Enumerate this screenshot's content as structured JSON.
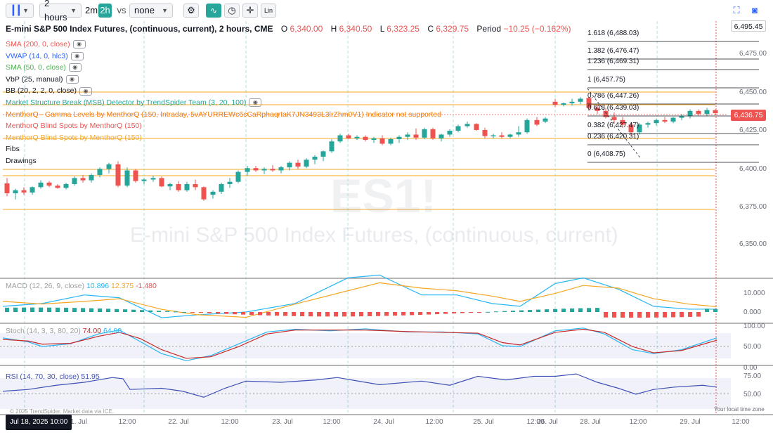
{
  "toolbar": {
    "interval": "2 hours",
    "interval_quick": [
      "2m",
      "2h"
    ],
    "vs_label": "vs",
    "compare_value": "none",
    "indicator_label": "Lin"
  },
  "header": {
    "title": "E-mini S&P 500 Index Futures, (continuous, current), 2 hours, CME",
    "o_label": "O",
    "o_value": "6,340.00",
    "h_label": "H",
    "h_value": "6,340.50",
    "l_label": "L",
    "l_value": "6,323.25",
    "c_label": "C",
    "c_value": "6,329.75",
    "period_label": "Period",
    "period_value": "−10.25 (−0.162%)"
  },
  "legend_items": [
    {
      "text": "SMA (200, 0, close)",
      "color": "#ef5350",
      "eye": true
    },
    {
      "text": "VWAP (14, 0, hlc3)",
      "color": "#2962ff",
      "eye": true
    },
    {
      "text": "SMA (50, 0, close)",
      "color": "#4caf50",
      "eye": true
    },
    {
      "text": "VbP (25, manual)",
      "color": "#131722",
      "eye": true
    },
    {
      "text": "BB (20, 2, 2, 0, close)",
      "color": "#131722",
      "eye": true
    },
    {
      "text": "Market Structure Break (MSB) Detector by TrendSpider Team (3, 20, 100)",
      "color": "#26a69a",
      "eye": true
    },
    {
      "text": "MenthorQ - Gamma Levels by MenthorQ (150, Intraday, 5vAYURREWc6cCaRphaqrtaK7JN3493L3lrZhm0V1)   Indicator not supported",
      "color": "#f57c00",
      "eye": false
    },
    {
      "text": "MenthorQ Blind Spots by MenthorQ (150)",
      "color": "#ef5350",
      "eye": false
    },
    {
      "text": "MenthorQ Blind Spots by MenthorQ (150)",
      "color": "#f5a623",
      "eye": false
    },
    {
      "text": "Fibs",
      "color": "#131722",
      "eye": false
    },
    {
      "text": "Drawings",
      "color": "#131722",
      "eye": false
    }
  ],
  "watermark": {
    "symbol": "ES1!",
    "name": "E-mini S&P 500 Index Futures, (continuous, current)"
  },
  "price_axis": [
    "6,475.00",
    "6,450.00",
    "6,425.00",
    "6,400.00",
    "6,375.00",
    "6,350.00"
  ],
  "price_tags": {
    "top": "6,495.45",
    "current": "6,436.75"
  },
  "fib_levels": [
    {
      "label": "1.618 (6,488.03)"
    },
    {
      "label": "1.382 (6,476.47)"
    },
    {
      "label": "1.236 (6,469.31)"
    },
    {
      "label": "1 (6,457.75)"
    },
    {
      "label": "0.786 (6,447.26)"
    },
    {
      "label": "0.618 (6,439.03)"
    },
    {
      "label": "0.382 (6,427.47)"
    },
    {
      "label": "0.236 (6,420.31)"
    },
    {
      "label": "0 (6,408.75)"
    }
  ],
  "macd": {
    "label": "MACD (12, 26, 9, close)",
    "v1": "10.896",
    "v2": "12.375",
    "v3": "-1.480",
    "axis": [
      "10.000",
      "0.000"
    ]
  },
  "stoch": {
    "label": "Stoch (14, 3, 3, 80, 20)",
    "v1": "74.00",
    "v2": "64.98",
    "axis": [
      "100.00",
      "50.00",
      "0.00"
    ]
  },
  "rsi": {
    "label": "RSI (14, 70, 30, close)",
    "v1": "51.95",
    "axis": [
      "75.00",
      "50.00"
    ]
  },
  "time_axis": [
    "1. Jul",
    "12:00",
    "22. Jul",
    "12:00",
    "23. Jul",
    "12:00",
    "24. Jul",
    "12:00",
    "25. Jul",
    "12:00",
    "26. Jul",
    "28. Jul",
    "12:00",
    "29. Jul",
    "12:00"
  ],
  "footer": {
    "copyright": "© 2025 TrendSpider. Market data via ICE.",
    "date_tag": "Jul 18, 2025 10:00",
    "local_time": "Your local time zone"
  },
  "colors": {
    "up": "#26a69a",
    "down": "#ef5350",
    "orange_line": "#f5a623",
    "macd_line": "#29b6f6",
    "signal_line": "#f5a623",
    "stoch_k": "#29b6f6",
    "stoch_d": "#c62828",
    "rsi_line": "#3f51b5"
  }
}
